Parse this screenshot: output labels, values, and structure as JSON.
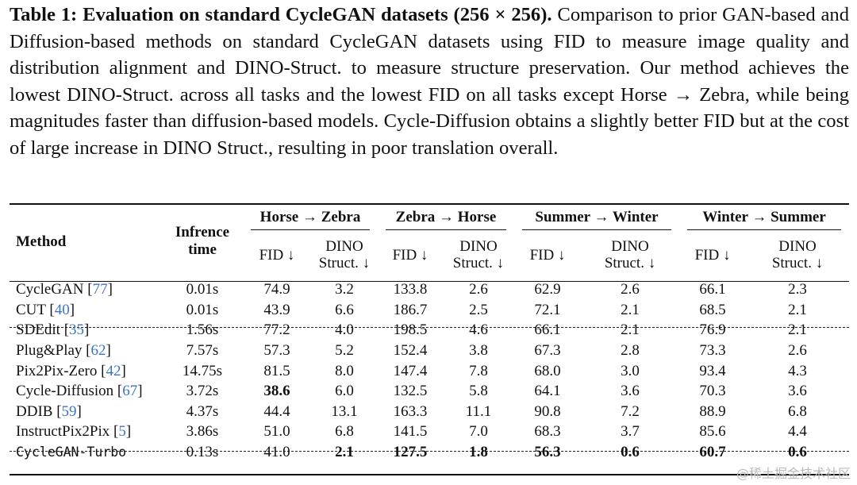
{
  "caption": {
    "title": "Table 1: Evaluation on standard CycleGAN datasets (256 × 256).",
    "body": " Comparison to prior GAN-based and Diffusion-based methods on standard CycleGAN datasets using FID to measure image quality and distribution alignment and DINO-Struct. to measure structure preservation. Our method achieves the lowest DINO-Struct. across all tasks and the lowest FID on all tasks except Horse → Zebra, while being magnitudes faster than diffusion-based models. Cycle-Diffusion obtains a slightly better FID but at the cost of large increase in DINO Struct., resulting in poor translation overall."
  },
  "table": {
    "method_header": "Method",
    "time_header_line1": "Infrence",
    "time_header_line2": "time",
    "groups": [
      "Horse → Zebra",
      "Zebra → Horse",
      "Summer → Winter",
      "Winter → Summer"
    ],
    "fid_label": "FID ↓",
    "dino_label_line1": "DINO",
    "dino_label_line2": "Struct. ↓",
    "rows": [
      {
        "name": "CycleGAN",
        "cite": "77",
        "time": "0.01s",
        "vals": [
          "74.9",
          "3.2",
          "133.8",
          "2.6",
          "62.9",
          "2.6",
          "66.1",
          "2.3"
        ],
        "bold": []
      },
      {
        "name": "CUT",
        "cite": "40",
        "time": "0.01s",
        "vals": [
          "43.9",
          "6.6",
          "186.7",
          "2.5",
          "72.1",
          "2.1",
          "68.5",
          "2.1"
        ],
        "bold": []
      },
      {
        "name": "SDEdit",
        "cite": "35",
        "time": "1.56s",
        "vals": [
          "77.2",
          "4.0",
          "198.5",
          "4.6",
          "66.1",
          "2.1",
          "76.9",
          "2.1"
        ],
        "bold": []
      },
      {
        "name": "Plug&Play",
        "cite": "62",
        "time": "7.57s",
        "vals": [
          "57.3",
          "5.2",
          "152.4",
          "3.8",
          "67.3",
          "2.8",
          "73.3",
          "2.6"
        ],
        "bold": []
      },
      {
        "name": "Pix2Pix-Zero",
        "cite": "42",
        "time": "14.75s",
        "vals": [
          "81.5",
          "8.0",
          "147.4",
          "7.8",
          "68.0",
          "3.0",
          "93.4",
          "4.3"
        ],
        "bold": []
      },
      {
        "name": "Cycle-Diffusion",
        "cite": "67",
        "time": "3.72s",
        "vals": [
          "38.6",
          "6.0",
          "132.5",
          "5.8",
          "64.1",
          "3.6",
          "70.3",
          "3.6"
        ],
        "bold": [
          0
        ]
      },
      {
        "name": "DDIB",
        "cite": "59",
        "time": "4.37s",
        "vals": [
          "44.4",
          "13.1",
          "163.3",
          "11.1",
          "90.8",
          "7.2",
          "88.9",
          "6.8"
        ],
        "bold": []
      },
      {
        "name": "InstructPix2Pix",
        "cite": "5",
        "time": "3.86s",
        "vals": [
          "51.0",
          "6.8",
          "141.5",
          "7.0",
          "68.3",
          "3.7",
          "85.6",
          "4.4"
        ],
        "bold": []
      },
      {
        "name": "CycleGAN-Turbo",
        "cite": "",
        "time": "0.13s",
        "vals": [
          "41.0",
          "2.1",
          "127.5",
          "1.8",
          "56.3",
          "0.6",
          "60.7",
          "0.6"
        ],
        "bold": [
          1,
          2,
          3,
          4,
          5,
          6,
          7
        ],
        "mono": true
      }
    ]
  },
  "watermark": "@稀土掘金技术社区"
}
